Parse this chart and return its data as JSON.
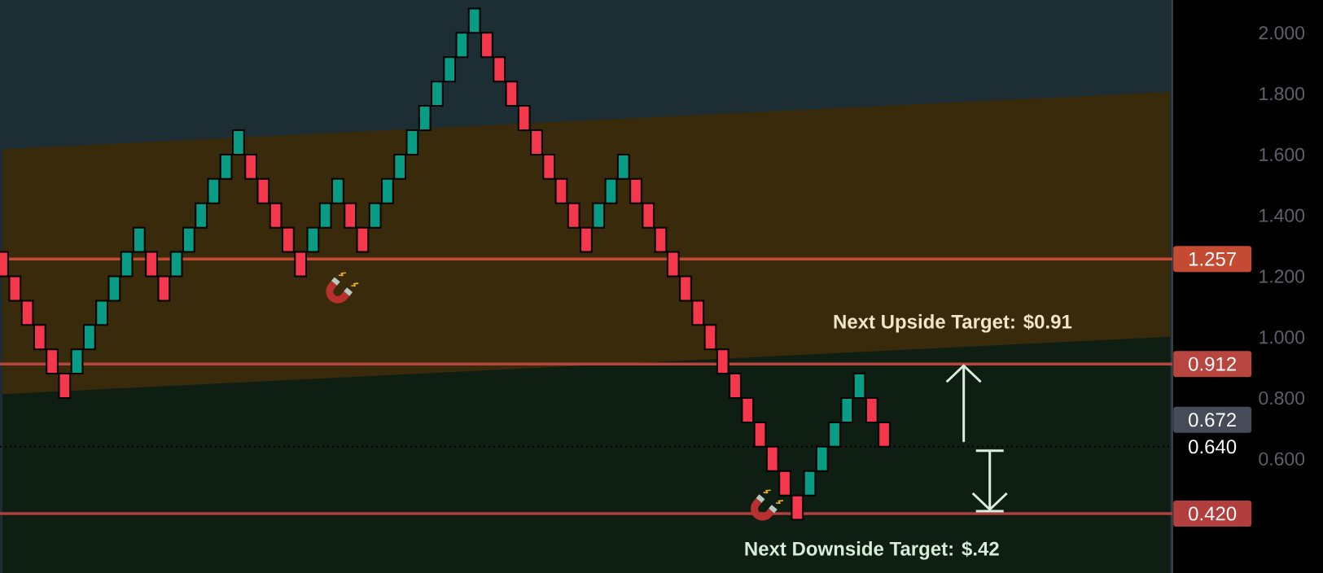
{
  "chart_data": {
    "type": "candlestick",
    "categories": [
      null,
      null,
      null,
      null,
      null,
      null,
      null,
      null,
      null,
      null,
      null,
      null,
      null,
      null,
      null,
      null,
      null,
      null,
      null,
      null,
      null,
      null,
      null,
      null,
      null,
      null,
      null,
      null,
      null,
      null,
      null,
      null,
      null,
      null,
      null,
      null,
      null,
      null,
      null,
      null,
      null,
      null,
      null,
      null,
      null,
      null,
      null,
      null,
      null,
      null,
      null,
      null,
      null,
      null,
      null,
      null,
      null,
      null,
      null,
      null,
      null,
      null,
      null,
      null,
      null,
      null,
      null,
      null,
      null,
      null,
      null,
      null,
      null,
      null,
      null,
      null,
      null,
      null,
      null,
      null,
      null,
      null,
      null,
      null,
      null,
      null,
      null,
      null,
      null,
      null,
      null,
      null,
      null,
      null,
      null
    ],
    "ohlc": [
      [
        1.28,
        1.28,
        1.2,
        1.2
      ],
      [
        1.2,
        1.2,
        1.12,
        1.12
      ],
      [
        1.12,
        1.12,
        1.04,
        1.04
      ],
      [
        1.04,
        1.04,
        0.96,
        0.96
      ],
      [
        0.96,
        0.96,
        0.88,
        0.88
      ],
      [
        0.88,
        0.88,
        0.8,
        0.8
      ],
      [
        0.88,
        0.96,
        0.88,
        0.96
      ],
      [
        0.96,
        1.04,
        0.96,
        1.04
      ],
      [
        1.04,
        1.12,
        1.04,
        1.12
      ],
      [
        1.12,
        1.2,
        1.12,
        1.2
      ],
      [
        1.2,
        1.28,
        1.2,
        1.28
      ],
      [
        1.28,
        1.36,
        1.28,
        1.36
      ],
      [
        1.28,
        1.28,
        1.2,
        1.2
      ],
      [
        1.2,
        1.2,
        1.12,
        1.12
      ],
      [
        1.2,
        1.28,
        1.2,
        1.28
      ],
      [
        1.28,
        1.36,
        1.28,
        1.36
      ],
      [
        1.36,
        1.44,
        1.36,
        1.44
      ],
      [
        1.44,
        1.52,
        1.44,
        1.52
      ],
      [
        1.52,
        1.6,
        1.52,
        1.6
      ],
      [
        1.6,
        1.68,
        1.6,
        1.68
      ],
      [
        1.6,
        1.6,
        1.52,
        1.52
      ],
      [
        1.52,
        1.52,
        1.44,
        1.44
      ],
      [
        1.44,
        1.44,
        1.36,
        1.36
      ],
      [
        1.36,
        1.36,
        1.28,
        1.28
      ],
      [
        1.28,
        1.28,
        1.2,
        1.2
      ],
      [
        1.28,
        1.36,
        1.28,
        1.36
      ],
      [
        1.36,
        1.44,
        1.36,
        1.44
      ],
      [
        1.44,
        1.52,
        1.44,
        1.52
      ],
      [
        1.44,
        1.44,
        1.36,
        1.36
      ],
      [
        1.36,
        1.36,
        1.28,
        1.28
      ],
      [
        1.36,
        1.44,
        1.36,
        1.44
      ],
      [
        1.44,
        1.52,
        1.44,
        1.52
      ],
      [
        1.52,
        1.6,
        1.52,
        1.6
      ],
      [
        1.6,
        1.68,
        1.6,
        1.68
      ],
      [
        1.68,
        1.76,
        1.68,
        1.76
      ],
      [
        1.76,
        1.84,
        1.76,
        1.84
      ],
      [
        1.84,
        1.92,
        1.84,
        1.92
      ],
      [
        1.92,
        2.0,
        1.92,
        2.0
      ],
      [
        2.0,
        2.08,
        2.0,
        2.08
      ],
      [
        2.0,
        2.0,
        1.92,
        1.92
      ],
      [
        1.92,
        1.92,
        1.84,
        1.84
      ],
      [
        1.84,
        1.84,
        1.76,
        1.76
      ],
      [
        1.76,
        1.76,
        1.68,
        1.68
      ],
      [
        1.68,
        1.68,
        1.6,
        1.6
      ],
      [
        1.6,
        1.6,
        1.52,
        1.52
      ],
      [
        1.52,
        1.52,
        1.44,
        1.44
      ],
      [
        1.44,
        1.44,
        1.36,
        1.36
      ],
      [
        1.36,
        1.36,
        1.28,
        1.28
      ],
      [
        1.36,
        1.44,
        1.36,
        1.44
      ],
      [
        1.44,
        1.52,
        1.44,
        1.52
      ],
      [
        1.52,
        1.6,
        1.52,
        1.6
      ],
      [
        1.52,
        1.52,
        1.44,
        1.44
      ],
      [
        1.44,
        1.44,
        1.36,
        1.36
      ],
      [
        1.36,
        1.36,
        1.28,
        1.28
      ],
      [
        1.28,
        1.28,
        1.2,
        1.2
      ],
      [
        1.2,
        1.2,
        1.12,
        1.12
      ],
      [
        1.12,
        1.12,
        1.04,
        1.04
      ],
      [
        1.04,
        1.04,
        0.96,
        0.96
      ],
      [
        0.96,
        0.96,
        0.88,
        0.88
      ],
      [
        0.88,
        0.88,
        0.8,
        0.8
      ],
      [
        0.8,
        0.8,
        0.72,
        0.72
      ],
      [
        0.72,
        0.72,
        0.64,
        0.64
      ],
      [
        0.64,
        0.64,
        0.56,
        0.56
      ],
      [
        0.56,
        0.56,
        0.48,
        0.48
      ],
      [
        0.48,
        0.48,
        0.4,
        0.4
      ],
      [
        0.48,
        0.56,
        0.48,
        0.56
      ],
      [
        0.56,
        0.64,
        0.56,
        0.64
      ],
      [
        0.64,
        0.72,
        0.64,
        0.72
      ],
      [
        0.72,
        0.8,
        0.72,
        0.8
      ],
      [
        0.8,
        0.88,
        0.8,
        0.88
      ],
      [
        0.8,
        0.8,
        0.72,
        0.72
      ],
      [
        0.72,
        0.72,
        0.64,
        0.64
      ],
      null,
      null,
      null,
      null,
      null,
      null,
      null,
      null,
      null,
      null,
      null,
      null,
      null,
      null,
      null,
      null,
      null,
      null,
      null,
      null,
      null,
      null,
      null
    ],
    "colors": [
      "#f4374b",
      "#f4374b",
      "#f4374b",
      "#f4374b",
      "#f4374b",
      "#f4374b",
      "#089c84",
      "#089c84",
      "#089c84",
      "#089c84",
      "#089c84",
      "#089c84",
      "#f4374b",
      "#f4374b",
      "#089c84",
      "#089c84",
      "#089c84",
      "#089c84",
      "#089c84",
      "#089c84",
      "#f4374b",
      "#f4374b",
      "#f4374b",
      "#f4374b",
      "#f4374b",
      "#089c84",
      "#089c84",
      "#089c84",
      "#f4374b",
      "#f4374b",
      "#089c84",
      "#089c84",
      "#089c84",
      "#089c84",
      "#089c84",
      "#089c84",
      "#089c84",
      "#089c84",
      "#089c84",
      "#f4374b",
      "#f4374b",
      "#f4374b",
      "#f4374b",
      "#f4374b",
      "#f4374b",
      "#f4374b",
      "#f4374b",
      "#f4374b",
      "#089c84",
      "#089c84",
      "#089c84",
      "#f4374b",
      "#f4374b",
      "#f4374b",
      "#f4374b",
      "#f4374b",
      "#f4374b",
      "#f4374b",
      "#f4374b",
      "#f4374b",
      "#f4374b",
      "#f4374b",
      "#f4374b",
      "#f4374b",
      "#f4374b",
      "#089c84",
      "#089c84",
      "#089c84",
      "#089c84",
      "#089c84",
      "#f4374b",
      "#f4374b",
      null,
      null,
      null,
      null,
      null,
      null,
      null,
      null,
      null,
      null,
      null,
      null,
      null,
      null,
      null,
      null,
      null,
      null,
      null,
      null,
      null,
      null,
      null
    ],
    "series": [
      {
        "type": "area",
        "color": "#3a2a0c",
        "values": [
          1.618,
          1.62,
          1.622,
          1.624,
          1.626,
          1.628,
          1.63,
          1.632,
          1.634,
          1.636,
          1.638,
          1.64,
          1.642,
          1.644,
          1.646,
          1.648,
          1.65,
          1.652,
          1.654,
          null,
          1.658,
          1.66,
          1.662,
          1.664,
          1.666,
          1.668,
          1.67,
          1.672,
          1.674,
          1.676,
          1.678,
          1.68,
          1.682,
          1.684,
          1.686,
          1.688,
          1.69,
          1.692,
          1.694,
          1.696,
          1.698,
          1.7,
          null,
          1.704,
          1.706,
          1.708,
          1.71,
          1.712,
          1.714,
          1.716,
          1.718,
          1.72,
          1.722,
          1.724,
          1.726,
          1.728,
          1.73,
          1.732,
          1.734,
          1.736,
          1.738,
          1.74,
          1.742,
          1.744,
          1.746,
          1.748,
          1.75,
          1.752,
          1.754,
          1.756,
          1.758,
          1.76,
          1.762,
          1.764,
          1.766,
          1.768,
          1.77,
          1.772,
          1.774,
          1.776,
          1.778,
          1.78,
          1.782,
          1.784,
          1.786,
          1.788,
          1.79,
          1.792,
          1.794,
          1.796,
          1.798,
          1.8,
          1.802,
          1.804,
          1.806
        ]
      },
      {
        "type": "area",
        "color": "#0f1e12",
        "values": [
          0.813,
          0.815,
          0.817,
          0.819,
          0.821,
          null,
          0.825,
          0.827,
          0.829,
          0.831,
          0.833,
          0.835,
          0.837,
          0.839,
          0.841,
          0.843,
          0.845,
          0.847,
          0.849,
          0.851,
          0.853,
          0.855,
          0.857,
          0.859,
          0.861,
          0.863,
          0.865,
          0.867,
          0.869,
          0.871,
          0.873,
          0.875,
          0.877,
          0.879,
          0.881,
          0.883,
          0.885,
          0.887,
          0.889,
          0.891,
          0.893,
          0.895,
          0.897,
          0.899,
          0.901,
          0.903,
          0.905,
          0.907,
          0.909,
          0.911,
          0.913,
          0.915,
          0.917,
          0.919,
          0.921,
          0.923,
          0.925,
          0.927,
          null,
          0.931,
          0.933,
          0.935,
          0.937,
          0.939,
          0.941,
          0.943,
          0.945,
          0.947,
          0.949,
          0.951,
          0.953,
          0.955,
          0.957,
          0.959,
          0.961,
          0.963,
          0.965,
          0.967,
          0.969,
          0.971,
          0.973,
          0.975,
          0.977,
          0.979,
          0.981,
          0.983,
          0.985,
          0.987,
          0.989,
          0.991,
          0.993,
          0.995,
          0.997,
          0.999,
          1.001
        ]
      }
    ],
    "ylim": [
      0.225,
      2.108
    ],
    "yticks": [
      {
        "value": 2.0,
        "label": "2.000"
      },
      {
        "value": 1.8,
        "label": "1.800"
      },
      {
        "value": 1.6,
        "label": "1.600"
      },
      {
        "value": 1.4,
        "label": "1.400"
      },
      {
        "value": 1.2,
        "label": "1.200"
      },
      {
        "value": 1.0,
        "label": "1.000"
      },
      {
        "value": 0.8,
        "label": "0.800"
      },
      {
        "value": 0.6,
        "label": "0.600"
      }
    ],
    "tick_labels": "y",
    "ref_lines": [
      {
        "axis": "y",
        "value": 1.257,
        "label": "1.257",
        "color": "#c44a32"
      },
      {
        "axis": "y",
        "value": 0.912,
        "label": "0.912",
        "color": "#b8453e"
      },
      {
        "axis": "y",
        "value": 0.64,
        "label": "0.640",
        "color": "#000000",
        "line_style": "dotted"
      },
      {
        "axis": "y",
        "value": 0.42,
        "label": "0.420",
        "color": "#b23e3e"
      }
    ],
    "annotations": [
      {
        "text": "Next Upside Target: $0.91",
        "y": 0.912
      },
      {
        "text": "Next Downside Target: $.42",
        "y": 0.42
      },
      "0.672"
    ]
  }
}
